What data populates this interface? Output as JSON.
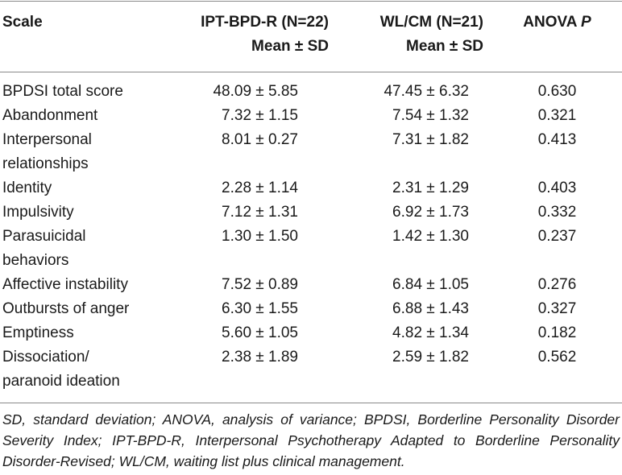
{
  "table": {
    "headers": {
      "scale": "Scale",
      "ipt_line1": "IPT-BPD-R (N=22)",
      "ipt_line2": "Mean ± SD",
      "wl_line1": "WL/CM (N=21)",
      "wl_line2": "Mean ± SD",
      "anova_prefix": "ANOVA ",
      "anova_p": "P"
    },
    "rows": [
      {
        "scale": "BPDSI total score",
        "ipt": "48.09 ± 5.85",
        "wl": "47.45 ± 6.32",
        "p": "0.630"
      },
      {
        "scale": "Abandonment",
        "ipt": "7.32 ± 1.15",
        "wl": "7.54 ± 1.32",
        "p": "0.321"
      },
      {
        "scale": "Interpersonal\nrelationships",
        "ipt": "8.01 ± 0.27",
        "wl": "7.31 ± 1.82",
        "p": "0.413"
      },
      {
        "scale": "Identity",
        "ipt": "2.28 ± 1.14",
        "wl": "2.31 ± 1.29",
        "p": "0.403"
      },
      {
        "scale": "Impulsivity",
        "ipt": "7.12 ± 1.31",
        "wl": "6.92 ± 1.73",
        "p": "0.332"
      },
      {
        "scale": "Parasuicidal\nbehaviors",
        "ipt": "1.30 ± 1.50",
        "wl": "1.42 ± 1.30",
        "p": "0.237"
      },
      {
        "scale": "Affective instability",
        "ipt": "7.52 ± 0.89",
        "wl": "6.84 ± 1.05",
        "p": "0.276"
      },
      {
        "scale": "Outbursts of anger",
        "ipt": "6.30 ± 1.55",
        "wl": "6.88 ± 1.43",
        "p": "0.327"
      },
      {
        "scale": "Emptiness",
        "ipt": "5.60 ± 1.05",
        "wl": "4.82 ± 1.34",
        "p": "0.182"
      },
      {
        "scale": "Dissociation/\nparanoid ideation",
        "ipt": "2.38 ± 1.89",
        "wl": "2.59 ± 1.82",
        "p": "0.562"
      }
    ]
  },
  "footnote": "SD, standard deviation; ANOVA, analysis of variance; BPDSI, Borderline Personality Disorder Severity Index; IPT-BPD-R, Interpersonal Psychotherapy Adapted to Borderline Personality Disorder-Revised; WL/CM, waiting list plus clinical management.",
  "colors": {
    "text": "#1a1a1a",
    "rule": "#888888",
    "background": "#ffffff"
  }
}
